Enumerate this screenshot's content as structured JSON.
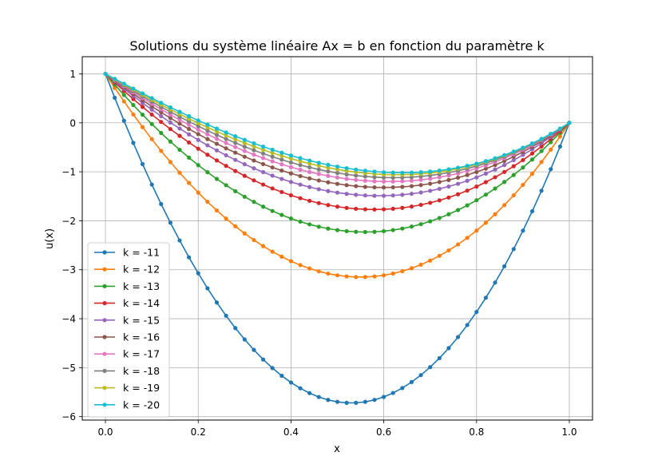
{
  "chart_data": {
    "type": "line",
    "title": "Solutions du système linéaire Ax = b en fonction du paramètre k",
    "xlabel": "x",
    "ylabel": "u(x)",
    "xlim": [
      -0.05,
      1.05
    ],
    "ylim": [
      -6.07,
      1.35
    ],
    "xticks": [
      0.0,
      0.2,
      0.4,
      0.6,
      0.8,
      1.0
    ],
    "xtick_labels": [
      "0.0",
      "0.2",
      "0.4",
      "0.6",
      "0.8",
      "1.0"
    ],
    "yticks": [
      1,
      0,
      -1,
      -2,
      -3,
      -4,
      -5,
      -6
    ],
    "ytick_labels": [
      "1",
      "0",
      "−1",
      "−2",
      "−3",
      "−4",
      "−5",
      "−6"
    ],
    "grid": true,
    "legend_position": "lower-left",
    "marker": "circle",
    "boundary": {
      "x0": 0.0,
      "y0": 1.0,
      "x1": 1.0,
      "y1": 0.0
    },
    "n_points": 51,
    "series": [
      {
        "name": "k = -11",
        "k": -11,
        "color": "#1f77b4",
        "min_x": 0.53,
        "min_y": -5.72
      },
      {
        "name": "k = -12",
        "k": -12,
        "color": "#ff7f0e",
        "min_x": 0.55,
        "min_y": -3.15
      },
      {
        "name": "k = -13",
        "k": -13,
        "color": "#2ca02c",
        "min_x": 0.56,
        "min_y": -2.23
      },
      {
        "name": "k = -14",
        "k": -14,
        "color": "#d62728",
        "min_x": 0.58,
        "min_y": -1.77
      },
      {
        "name": "k = -15",
        "k": -15,
        "color": "#9467bd",
        "min_x": 0.59,
        "min_y": -1.49
      },
      {
        "name": "k = -16",
        "k": -16,
        "color": "#8c564b",
        "min_x": 0.6,
        "min_y": -1.32
      },
      {
        "name": "k = -17",
        "k": -17,
        "color": "#e377c2",
        "min_x": 0.61,
        "min_y": -1.2
      },
      {
        "name": "k = -18",
        "k": -18,
        "color": "#7f7f7f",
        "min_x": 0.62,
        "min_y": -1.12
      },
      {
        "name": "k = -19",
        "k": -19,
        "color": "#bcbd22",
        "min_x": 0.63,
        "min_y": -1.06
      },
      {
        "name": "k = -20",
        "k": -20,
        "color": "#17becf",
        "min_x": 0.64,
        "min_y": -1.02
      }
    ]
  }
}
